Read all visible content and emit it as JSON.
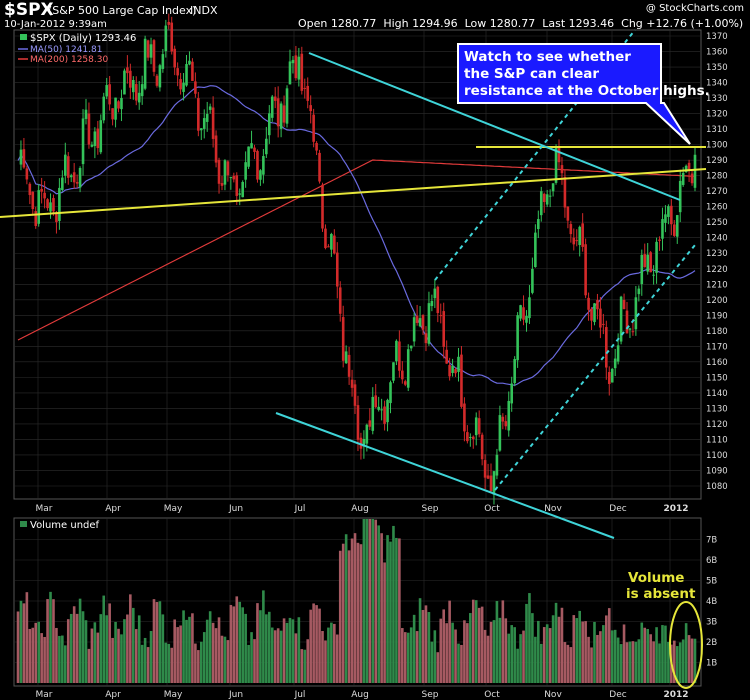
{
  "header": {
    "symbol": "$SPX",
    "name": "(S&P 500 Large Cap Index)",
    "exchange": "INDX",
    "date": "10-Jan-2012 9:39am",
    "quote": "Open 1280.77  High 1294.96  Low 1280.77  Last 1293.46  Chg +12.76 (+1.00%)",
    "watermark": "@ StockCharts.com"
  },
  "legend": {
    "price": "$SPX (Daily) 1293.46",
    "ma50": "MA(50) 1241.81",
    "ma200": "MA(200) 1258.30",
    "volume": "Volume undef"
  },
  "colors": {
    "background": "#000000",
    "up": "#34c35a",
    "down": "#d32a2a",
    "ma50": "#6a6adf",
    "ma200": "#e23b3b",
    "trendline_cyan": "#3fd4d8",
    "trendline_yellow": "#e6e63a",
    "volume_up": "#2f8a4a",
    "volume_down": "#a65a62",
    "grid": "#2c2c2c"
  },
  "annotations": {
    "callout": "Watch to see whether the S&P can clear resistance at the October highs.",
    "volume_note_1": "Volume",
    "volume_note_2": "is absent"
  },
  "chart_data": {
    "type": "line",
    "title": "$SPX (Daily)",
    "ylim": [
      1070,
      1375
    ],
    "y_ticks": [
      1080,
      1090,
      1100,
      1110,
      1120,
      1130,
      1140,
      1150,
      1160,
      1170,
      1180,
      1190,
      1200,
      1210,
      1220,
      1230,
      1240,
      1250,
      1260,
      1270,
      1280,
      1290,
      1300,
      1310,
      1320,
      1330,
      1340,
      1350,
      1360,
      1370
    ],
    "x_labels": [
      "Mar",
      "Apr",
      "May",
      "Jun",
      "Jul",
      "Aug",
      "Sep",
      "Oct",
      "Nov",
      "Dec",
      "2012"
    ],
    "key_points": [
      {
        "date": "Feb 2011",
        "close": 1290
      },
      {
        "date": "Mar 2011",
        "close": 1255
      },
      {
        "date": "Apr 2011",
        "close": 1330
      },
      {
        "date": "May 2011",
        "close": 1365
      },
      {
        "date": "Jun 2011",
        "close": 1265
      },
      {
        "date": "Jul 2011",
        "close": 1355
      },
      {
        "date": "Aug 2011",
        "close": 1110
      },
      {
        "date": "Sep 2011",
        "close": 1200
      },
      {
        "date": "Oct 2011",
        "close": 1080
      },
      {
        "date": "Nov 2011",
        "close": 1290
      },
      {
        "date": "Dec 2011",
        "close": 1160
      },
      {
        "date": "Jan 2012",
        "close": 1293.46
      }
    ],
    "series": [
      {
        "name": "MA(50)",
        "last": 1241.81
      },
      {
        "name": "MA(200)",
        "last": 1258.3
      }
    ],
    "resistance_level": 1292,
    "volume": {
      "ylabel": "Volume undef",
      "ylim": [
        0,
        8
      ],
      "y_ticks": [
        "1B",
        "2B",
        "3B",
        "4B",
        "5B",
        "6B",
        "7B"
      ],
      "peak": 8.0
    }
  }
}
